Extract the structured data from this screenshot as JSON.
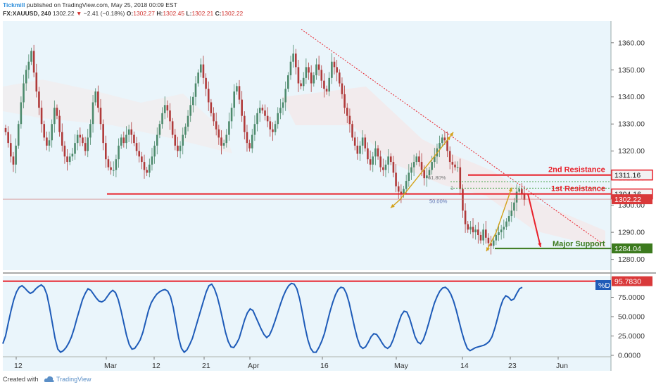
{
  "header": {
    "brand": "Tickmill",
    "published": "published on TradingView.com, May 25, 2018 00:09 EST",
    "symbol": "FX:XAUUSD, 240",
    "last": "1302.22",
    "change_icon": "down-triangle-icon",
    "change": "−2.41 (−0.18%)",
    "o_label": "O:",
    "o": "1302.27",
    "h_label": "H:",
    "h": "1302.45",
    "l_label": "L:",
    "l": "1302.21",
    "c_label": "C:",
    "c": "1302.22"
  },
  "footer": {
    "created": "Created with",
    "logo": "tradingview-cloud-icon",
    "brand": "TradingView"
  },
  "colors": {
    "bg": "#eaf5fb",
    "up": "#4d8a6c",
    "down": "#b03a3a",
    "resistance": "#e8202a",
    "support": "#3c7a1e",
    "arrow_gold": "#d3a21a",
    "stoch": "#1e5bb8",
    "label_gray": "#e8e8e8",
    "label_red": "#d9393a"
  },
  "labels": {
    "second_resistance": "2nd Resistance",
    "first_resistance": "1st Resistance",
    "major_support": "Major Support",
    "fib_618": "61.80%",
    "fib_1": "1",
    "fib_50": "50.00%"
  },
  "price_tags": {
    "second_resistance": "1311.16",
    "first_resistance": "1304.16",
    "last": "1302.22",
    "support": "1284.04",
    "stoch_level": "95.7830",
    "stoch_name": "%D"
  },
  "chart_data": [
    {
      "type": "candlestick",
      "symbol": "XAUUSD 240",
      "y_axis_ticks": [
        1280,
        1290,
        1300,
        1310,
        1320,
        1330,
        1340,
        1350,
        1360
      ],
      "ylim": [
        1276,
        1368
      ],
      "x_ticks": [
        "12",
        "Mar",
        "12",
        "21",
        "Apr",
        "16",
        "May",
        "14",
        "23",
        "Jun"
      ],
      "closes": [
        1327,
        1323,
        1318,
        1315,
        1322,
        1330,
        1338,
        1345,
        1350,
        1353,
        1357,
        1349,
        1342,
        1336,
        1330,
        1325,
        1322,
        1324,
        1330,
        1336,
        1333,
        1327,
        1322,
        1318,
        1316,
        1318,
        1319,
        1323,
        1326,
        1325,
        1323,
        1320,
        1325,
        1330,
        1338,
        1342,
        1336,
        1330,
        1323,
        1317,
        1314,
        1313,
        1313,
        1317,
        1322,
        1325,
        1323,
        1326,
        1328,
        1326,
        1323,
        1320,
        1318,
        1316,
        1313,
        1312,
        1315,
        1318,
        1322,
        1326,
        1330,
        1334,
        1337,
        1335,
        1331,
        1326,
        1322,
        1320,
        1322,
        1326,
        1329,
        1333,
        1337,
        1340,
        1345,
        1349,
        1352,
        1347,
        1343,
        1338,
        1334,
        1331,
        1328,
        1325,
        1322,
        1323,
        1326,
        1331,
        1336,
        1342,
        1344,
        1339,
        1333,
        1327,
        1323,
        1321,
        1326,
        1330,
        1334,
        1336,
        1335,
        1333,
        1331,
        1328,
        1327,
        1330,
        1334,
        1336,
        1338,
        1343,
        1348,
        1353,
        1356,
        1351,
        1345,
        1344,
        1347,
        1351,
        1349,
        1345,
        1348,
        1352,
        1350,
        1346,
        1343,
        1342,
        1347,
        1353,
        1351,
        1349,
        1345,
        1341,
        1336,
        1333,
        1330,
        1325,
        1322,
        1319,
        1322,
        1325,
        1321,
        1317,
        1315,
        1318,
        1321,
        1318,
        1314,
        1313,
        1315,
        1318,
        1316,
        1312,
        1307,
        1305,
        1304,
        1306,
        1309,
        1312,
        1314,
        1316,
        1318,
        1316,
        1313,
        1310,
        1311,
        1313,
        1316,
        1318,
        1321,
        1323,
        1325,
        1324,
        1320,
        1316,
        1315,
        1314,
        1314,
        1306,
        1298,
        1293,
        1291,
        1292,
        1290,
        1291,
        1289,
        1287,
        1291,
        1288,
        1286,
        1285,
        1287,
        1289,
        1290,
        1291,
        1292,
        1294,
        1296,
        1298,
        1301,
        1305,
        1306,
        1304,
        1302
      ]
    },
    {
      "type": "line",
      "name": "%D",
      "y_axis_ticks": [
        0,
        25,
        50,
        75
      ],
      "ylim": [
        0,
        100
      ],
      "reference_level": 95.783,
      "values": [
        15,
        25,
        42,
        58,
        72,
        82,
        88,
        90,
        87,
        83,
        80,
        82,
        86,
        89,
        91,
        88,
        79,
        62,
        42,
        22,
        8,
        4,
        6,
        10,
        16,
        24,
        35,
        48,
        60,
        72,
        80,
        86,
        84,
        79,
        74,
        70,
        69,
        71,
        76,
        81,
        84,
        81,
        72,
        58,
        42,
        26,
        14,
        8,
        9,
        14,
        20,
        30,
        44,
        58,
        68,
        74,
        79,
        82,
        84,
        85,
        83,
        76,
        62,
        42,
        22,
        9,
        4,
        7,
        14,
        22,
        34,
        46,
        58,
        70,
        82,
        90,
        92,
        86,
        76,
        62,
        46,
        30,
        18,
        11,
        10,
        15,
        22,
        34,
        46,
        55,
        60,
        58,
        50,
        42,
        34,
        27,
        23,
        26,
        34,
        44,
        55,
        66,
        76,
        84,
        90,
        93,
        92,
        86,
        73,
        55,
        36,
        20,
        9,
        4,
        4,
        10,
        18,
        28,
        42,
        56,
        68,
        78,
        85,
        88,
        87,
        80,
        68,
        52,
        36,
        22,
        12,
        9,
        11,
        17,
        24,
        28,
        27,
        22,
        16,
        11,
        9,
        12,
        20,
        31,
        42,
        52,
        57,
        56,
        48,
        36,
        24,
        17,
        15,
        20,
        30,
        42,
        55,
        67,
        76,
        83,
        87,
        88,
        85,
        79,
        70,
        58,
        44,
        30,
        18,
        9,
        6,
        8,
        10,
        11,
        12,
        13,
        15,
        18,
        24,
        35,
        48,
        62,
        72,
        77,
        75,
        71,
        73,
        80,
        86,
        88
      ]
    }
  ]
}
